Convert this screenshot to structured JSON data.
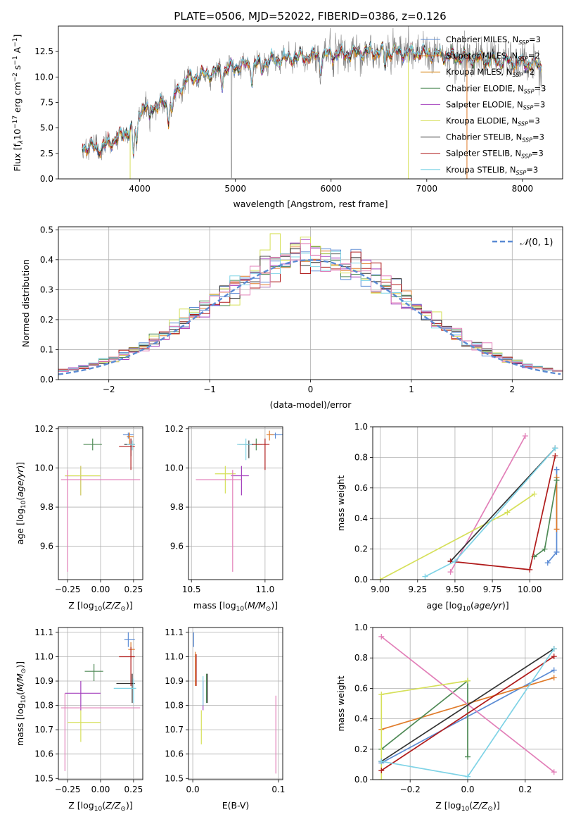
{
  "figure": {
    "title": "PLATE=0506, MJD=52022, FIBERID=0386, z=0.126"
  },
  "chart_data": [
    {
      "id": "spectrum",
      "type": "line",
      "xlabel": "wavelength [Angstrom, rest frame]",
      "ylabel_prefix": "Flux [f",
      "ylabel_sub": "λ",
      "ylabel_mid": "10",
      "ylabel_exp1": "−17",
      "ylabel_mid2": " erg cm",
      "ylabel_exp2": "−2",
      "ylabel_mid3": " s",
      "ylabel_exp3": "−1",
      "ylabel_mid4": " A",
      "ylabel_exp4": "−1",
      "ylabel_end": "]",
      "xlim": [
        3150,
        8420
      ],
      "ylim": [
        0,
        15
      ],
      "xticks": [
        4000,
        5000,
        6000,
        7000,
        8000
      ],
      "xtick_labels": [
        "4000",
        "5000",
        "6000",
        "7000",
        "8000"
      ],
      "yticks": [
        0,
        2.5,
        5,
        7.5,
        10,
        12.5
      ],
      "ytick_labels": [
        "0.0",
        "2.5",
        "5.0",
        "7.5",
        "10.0",
        "12.5"
      ],
      "grid": false,
      "legend_position": "right",
      "data_range": [
        3400,
        8200
      ],
      "continuum_knots": {
        "wavelength": [
          3400,
          3600,
          3800,
          3950,
          4000,
          4300,
          4500,
          4800,
          5000,
          5500,
          6000,
          6500,
          7000,
          7500,
          8000,
          8200
        ],
        "flux": [
          3.2,
          3.0,
          4.2,
          5.2,
          6.8,
          7.5,
          9.8,
          10.5,
          11.0,
          11.8,
          12.2,
          12.5,
          12.3,
          11.8,
          11.4,
          11.2
        ]
      },
      "series": [
        {
          "name": "Chabrier MILES",
          "nssp": "3",
          "color": "#5b8bd4"
        },
        {
          "name": "Salpeter MILES",
          "nssp": "2",
          "color": "#e07b2a"
        },
        {
          "name": "Kroupa MILES",
          "nssp": "2",
          "color": "#d98b1f"
        },
        {
          "name": "Chabrier ELODIE",
          "nssp": "3",
          "color": "#4f8a56"
        },
        {
          "name": "Salpeter ELODIE",
          "nssp": "3",
          "color": "#a33fbd"
        },
        {
          "name": "Kroupa ELODIE",
          "nssp": "3",
          "color": "#d6e05a"
        },
        {
          "name": "Chabrier STELIB",
          "nssp": "3",
          "color": "#333333"
        },
        {
          "name": "Salpeter STELIB",
          "nssp": "3",
          "color": "#b01b1b"
        },
        {
          "name": "Kroupa STELIB",
          "nssp": "3",
          "color": "#7fd3e6"
        }
      ],
      "data_color": "#808080"
    },
    {
      "id": "residuals",
      "type": "histogram",
      "xlabel": "(data-model)/error",
      "ylabel": "Normed distribution",
      "xlim": [
        -2.5,
        2.5
      ],
      "ylim": [
        0,
        0.51
      ],
      "xticks": [
        -2,
        -1,
        0,
        1,
        2
      ],
      "xtick_labels": [
        "−2",
        "−1",
        "0",
        "1",
        "2"
      ],
      "yticks": [
        0,
        0.1,
        0.2,
        0.3,
        0.4,
        0.5
      ],
      "ytick_labels": [
        "0.0",
        "0.1",
        "0.2",
        "0.3",
        "0.4",
        "0.5"
      ],
      "grid": true,
      "bin_width": 0.1,
      "legend": {
        "label_main": "𝒩",
        "label_rest": "(0, 1)",
        "position": "top-right",
        "style": "dashed",
        "color": "#5b8bd4"
      },
      "hist_colors": [
        "#5b8bd4",
        "#e07b2a",
        "#4f8a56",
        "#a33fbd",
        "#d6e05a",
        "#333333",
        "#b01b1b",
        "#7fd3e6",
        "#e27fb8"
      ]
    },
    {
      "id": "age-vs-Z",
      "type": "errorbar",
      "xlabel": "Z [log10(Z/Z⊙)]",
      "ylabel": "age [log10(age/yr)]",
      "xlim": [
        -0.32,
        0.32
      ],
      "ylim": [
        9.43,
        10.21
      ],
      "xticks": [
        -0.25,
        0.0,
        0.25
      ],
      "xtick_labels": [
        "−0.25",
        "0.00",
        "0.25"
      ],
      "yticks": [
        9.6,
        9.8,
        10.0,
        10.2
      ],
      "ytick_labels": [
        "9.6",
        "9.8",
        "10.0",
        "10.2"
      ],
      "grid": true,
      "points": [
        {
          "x": 0.21,
          "y": 10.17,
          "xerr": [
            0.04,
            0.04
          ],
          "yerr": [
            0.02,
            0.01
          ],
          "color": "#5b8bd4"
        },
        {
          "x": 0.22,
          "y": 10.16,
          "xerr": [
            0.02,
            0.03
          ],
          "yerr": [
            0.04,
            0.02
          ],
          "color": "#e07b2a"
        },
        {
          "x": -0.06,
          "y": 10.12,
          "xerr": [
            0.07,
            0.07
          ],
          "yerr": [
            0.03,
            0.03
          ],
          "color": "#4f8a56"
        },
        {
          "x": -0.15,
          "y": 9.96,
          "xerr": [
            0.12,
            0.15
          ],
          "yerr": [
            0.1,
            0.05
          ],
          "color": "#a33fbd"
        },
        {
          "x": -0.15,
          "y": 9.96,
          "xerr": [
            0.12,
            0.15
          ],
          "yerr": [
            0.1,
            0.05
          ],
          "color": "#d6e05a"
        },
        {
          "x": 0.23,
          "y": 10.12,
          "xerr": [
            0.05,
            0.03
          ],
          "yerr": [
            0.06,
            0.03
          ],
          "color": "#333333"
        },
        {
          "x": 0.23,
          "y": 10.11,
          "xerr": [
            0.09,
            0.03
          ],
          "yerr": [
            0.12,
            0.04
          ],
          "color": "#b01b1b"
        },
        {
          "x": 0.24,
          "y": 10.12,
          "xerr": [
            0.04,
            0.02
          ],
          "yerr": [
            0.03,
            0.02
          ],
          "color": "#7fd3e6"
        },
        {
          "x": -0.25,
          "y": 9.94,
          "xerr": [
            0.05,
            0.55
          ],
          "yerr": [
            0.47,
            0.05
          ],
          "color": "#e27fb8"
        }
      ]
    },
    {
      "id": "age-vs-mass",
      "type": "errorbar",
      "xlabel": "mass [log10(M/M⊙)]",
      "ylabel": "",
      "xlim": [
        10.48,
        11.12
      ],
      "ylim": [
        9.43,
        10.21
      ],
      "xticks": [
        10.5,
        11.0
      ],
      "xtick_labels": [
        "10.5",
        "11.0"
      ],
      "yticks": [
        9.6,
        9.8,
        10.0,
        10.2
      ],
      "ytick_labels": [
        "9.6",
        "9.8",
        "10.0",
        "10.2"
      ],
      "grid": true,
      "points": [
        {
          "x": 11.07,
          "y": 10.17,
          "xerr": [
            0.04,
            0.05
          ],
          "yerr": [
            0.02,
            0.01
          ],
          "color": "#5b8bd4"
        },
        {
          "x": 11.03,
          "y": 10.17,
          "xerr": [
            0.02,
            0.03
          ],
          "yerr": [
            0.03,
            0.02
          ],
          "color": "#e07b2a"
        },
        {
          "x": 10.94,
          "y": 10.12,
          "xerr": [
            0.08,
            0.04
          ],
          "yerr": [
            0.03,
            0.03
          ],
          "color": "#4f8a56"
        },
        {
          "x": 10.84,
          "y": 9.96,
          "xerr": [
            0.07,
            0.05
          ],
          "yerr": [
            0.1,
            0.05
          ],
          "color": "#a33fbd"
        },
        {
          "x": 10.73,
          "y": 9.97,
          "xerr": [
            0.07,
            0.07
          ],
          "yerr": [
            0.1,
            0.04
          ],
          "color": "#d6e05a"
        },
        {
          "x": 10.89,
          "y": 10.12,
          "xerr": [
            0.07,
            0.03
          ],
          "yerr": [
            0.07,
            0.02
          ],
          "color": "#333333"
        },
        {
          "x": 11.0,
          "y": 10.12,
          "xerr": [
            0.08,
            0.03
          ],
          "yerr": [
            0.13,
            0.03
          ],
          "color": "#b01b1b"
        },
        {
          "x": 10.87,
          "y": 10.12,
          "xerr": [
            0.06,
            0.04
          ],
          "yerr": [
            0.08,
            0.03
          ],
          "color": "#7fd3e6"
        },
        {
          "x": 10.78,
          "y": 9.94,
          "xerr": [
            0.25,
            0.06
          ],
          "yerr": [
            0.47,
            0.05
          ],
          "color": "#e27fb8"
        }
      ]
    },
    {
      "id": "massweight-vs-age",
      "type": "line",
      "xlabel": "age [log10(age/yr)]",
      "ylabel": "mass weight",
      "xlim": [
        8.95,
        10.22
      ],
      "ylim": [
        0,
        1
      ],
      "xticks": [
        9.0,
        9.25,
        9.5,
        9.75,
        10.0
      ],
      "xtick_labels": [
        "9.00",
        "9.25",
        "9.50",
        "9.75",
        "10.00"
      ],
      "yticks": [
        0,
        0.2,
        0.4,
        0.6,
        0.8,
        1.0
      ],
      "ytick_labels": [
        "0.0",
        "0.2",
        "0.4",
        "0.6",
        "0.8",
        "1.0"
      ],
      "grid": true,
      "series": [
        {
          "color": "#5b8bd4",
          "x": [
            10.12,
            10.18,
            10.18,
            10.18
          ],
          "y": [
            0.11,
            0.18,
            0.72,
            0.72
          ]
        },
        {
          "color": "#e07b2a",
          "x": [
            10.18,
            10.18
          ],
          "y": [
            0.33,
            0.67
          ]
        },
        {
          "color": "#4f8a56",
          "x": [
            10.03,
            10.1,
            10.18
          ],
          "y": [
            0.15,
            0.2,
            0.65
          ]
        },
        {
          "color": "#e27fb8",
          "x": [
            9.47,
            9.97
          ],
          "y": [
            0.05,
            0.94
          ]
        },
        {
          "color": "#d6e05a",
          "x": [
            9.0,
            9.85,
            10.03
          ],
          "y": [
            0.0,
            0.44,
            0.56
          ]
        },
        {
          "color": "#333333",
          "x": [
            9.47,
            10.17
          ],
          "y": [
            0.12,
            0.86
          ]
        },
        {
          "color": "#b01b1b",
          "x": [
            9.47,
            10.0,
            10.17
          ],
          "y": [
            0.12,
            0.065,
            0.81
          ]
        },
        {
          "color": "#7fd3e6",
          "x": [
            9.3,
            9.5,
            10.17
          ],
          "y": [
            0.02,
            0.12,
            0.86
          ]
        }
      ]
    },
    {
      "id": "mass-vs-Z",
      "type": "errorbar",
      "xlabel": "Z [log10(Z/Z⊙)]",
      "ylabel": "mass [log10(M/M⊙)]",
      "xlim": [
        -0.32,
        0.32
      ],
      "ylim": [
        10.495,
        11.12
      ],
      "xticks": [
        -0.25,
        0.0,
        0.25
      ],
      "xtick_labels": [
        "−0.25",
        "0.00",
        "0.25"
      ],
      "yticks": [
        10.5,
        10.6,
        10.7,
        10.8,
        10.9,
        11.0,
        11.1
      ],
      "ytick_labels": [
        "10.5",
        "10.6",
        "10.7",
        "10.8",
        "10.9",
        "11.0",
        "11.1"
      ],
      "grid": true,
      "points": [
        {
          "x": 0.21,
          "y": 11.07,
          "xerr": [
            0.03,
            0.05
          ],
          "yerr": [
            0.03,
            0.03
          ],
          "color": "#5b8bd4"
        },
        {
          "x": 0.23,
          "y": 11.03,
          "xerr": [
            0.02,
            0.03
          ],
          "yerr": [
            0.04,
            0.03
          ],
          "color": "#e07b2a"
        },
        {
          "x": -0.05,
          "y": 10.94,
          "xerr": [
            0.07,
            0.07
          ],
          "yerr": [
            0.04,
            0.03
          ],
          "color": "#4f8a56"
        },
        {
          "x": -0.15,
          "y": 10.85,
          "xerr": [
            0.12,
            0.15
          ],
          "yerr": [
            0.07,
            0.05
          ],
          "color": "#a33fbd"
        },
        {
          "x": -0.15,
          "y": 10.73,
          "xerr": [
            0.1,
            0.15
          ],
          "yerr": [
            0.08,
            0.05
          ],
          "color": "#d6e05a"
        },
        {
          "x": 0.24,
          "y": 10.89,
          "xerr": [
            0.12,
            0.02
          ],
          "yerr": [
            0.08,
            0.04
          ],
          "color": "#333333"
        },
        {
          "x": 0.23,
          "y": 11.0,
          "xerr": [
            0.09,
            0.03
          ],
          "yerr": [
            0.12,
            0.04
          ],
          "color": "#b01b1b"
        },
        {
          "x": 0.25,
          "y": 10.87,
          "xerr": [
            0.15,
            0.02
          ],
          "yerr": [
            0.06,
            0.04
          ],
          "color": "#7fd3e6"
        },
        {
          "x": -0.27,
          "y": 10.79,
          "xerr": [
            0.03,
            0.57
          ],
          "yerr": [
            0.26,
            0.06
          ],
          "color": "#e27fb8"
        }
      ]
    },
    {
      "id": "mass-vs-EBV",
      "type": "errorbar",
      "xlabel": "E(B-V)",
      "ylabel": "",
      "xlim": [
        -0.005,
        0.105
      ],
      "ylim": [
        10.495,
        11.12
      ],
      "xticks": [
        0.0,
        0.1
      ],
      "xtick_labels": [
        "0.0",
        "0.1"
      ],
      "yticks": [
        10.5,
        10.6,
        10.7,
        10.8,
        10.9,
        11.0,
        11.1
      ],
      "ytick_labels": [
        "10.5",
        "10.6",
        "10.7",
        "10.8",
        "10.9",
        "11.0",
        "11.1"
      ],
      "grid": true,
      "points": [
        {
          "x": 0.001,
          "y": 11.07,
          "xerr": [
            0,
            0
          ],
          "yerr": [
            0.03,
            0.03
          ],
          "color": "#5b8bd4"
        },
        {
          "x": 0.003,
          "y": 11.0,
          "xerr": [
            0,
            0
          ],
          "yerr": [
            0.12,
            0.02
          ],
          "color": "#e07b2a"
        },
        {
          "x": 0.016,
          "y": 10.87,
          "xerr": [
            0,
            0
          ],
          "yerr": [
            0.06,
            0.06
          ],
          "color": "#4f8a56"
        },
        {
          "x": 0.012,
          "y": 10.85,
          "xerr": [
            0,
            0
          ],
          "yerr": [
            0.07,
            0.05
          ],
          "color": "#a33fbd"
        },
        {
          "x": 0.01,
          "y": 10.73,
          "xerr": [
            0,
            0
          ],
          "yerr": [
            0.09,
            0.05
          ],
          "color": "#d6e05a"
        },
        {
          "x": 0.017,
          "y": 10.87,
          "xerr": [
            0,
            0
          ],
          "yerr": [
            0.06,
            0.06
          ],
          "color": "#333333"
        },
        {
          "x": 0.004,
          "y": 10.95,
          "xerr": [
            0,
            0
          ],
          "yerr": [
            0.07,
            0.06
          ],
          "color": "#b01b1b"
        },
        {
          "x": 0.012,
          "y": 10.86,
          "xerr": [
            0,
            0
          ],
          "yerr": [
            0.06,
            0.06
          ],
          "color": "#7fd3e6"
        },
        {
          "x": 0.097,
          "y": 10.68,
          "xerr": [
            0,
            0
          ],
          "yerr": [
            0.16,
            0.16
          ],
          "color": "#e27fb8"
        }
      ]
    },
    {
      "id": "massweight-vs-Z",
      "type": "line",
      "xlabel": "Z [log10(Z/Z⊙)]",
      "ylabel": "mass weight",
      "xlim": [
        -0.33,
        0.33
      ],
      "ylim": [
        0,
        1
      ],
      "xticks": [
        -0.2,
        0.0,
        0.2
      ],
      "xtick_labels": [
        "−0.2",
        "0.0",
        "0.2"
      ],
      "yticks": [
        0,
        0.2,
        0.4,
        0.6,
        0.8,
        1.0
      ],
      "ytick_labels": [
        "0.0",
        "0.2",
        "0.4",
        "0.6",
        "0.8",
        "1.0"
      ],
      "grid": true,
      "series": [
        {
          "color": "#5b8bd4",
          "x": [
            -0.3,
            0.3
          ],
          "y": [
            0.11,
            0.72
          ]
        },
        {
          "color": "#e07b2a",
          "x": [
            -0.3,
            0.3
          ],
          "y": [
            0.33,
            0.67
          ]
        },
        {
          "color": "#4f8a56",
          "x": [
            -0.3,
            0.0,
            0.0
          ],
          "y": [
            0.2,
            0.65,
            0.15
          ]
        },
        {
          "color": "#e27fb8",
          "x": [
            -0.3,
            0.3
          ],
          "y": [
            0.94,
            0.05
          ]
        },
        {
          "color": "#d6e05a",
          "x": [
            -0.3,
            -0.3,
            0.0
          ],
          "y": [
            0.0,
            0.56,
            0.65
          ]
        },
        {
          "color": "#333333",
          "x": [
            -0.3,
            0.3
          ],
          "y": [
            0.12,
            0.86
          ]
        },
        {
          "color": "#b01b1b",
          "x": [
            -0.3,
            0.3
          ],
          "y": [
            0.06,
            0.81
          ]
        },
        {
          "color": "#7fd3e6",
          "x": [
            -0.3,
            0.0,
            0.3
          ],
          "y": [
            0.12,
            0.02,
            0.86
          ]
        }
      ]
    }
  ]
}
